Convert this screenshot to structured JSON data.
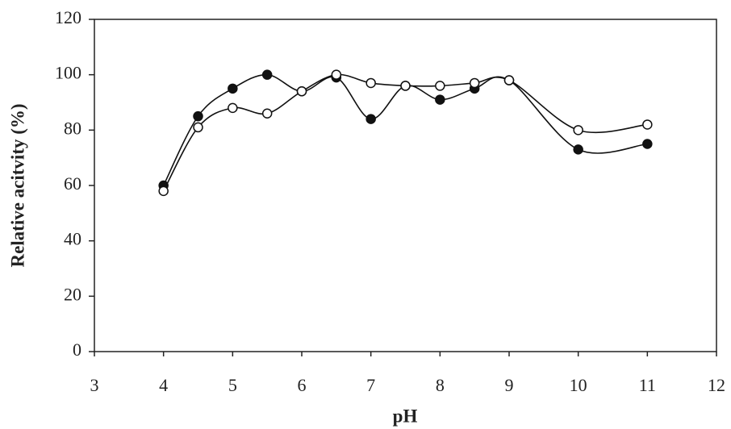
{
  "chart_data": {
    "type": "line",
    "x_label": "pH",
    "y_label": "Relative acitvity (%)",
    "x": [
      4,
      4.5,
      5,
      5.5,
      6,
      6.5,
      7,
      7.5,
      8,
      8.5,
      9,
      10,
      11
    ],
    "series": [
      {
        "name": "filled",
        "color": "#111111",
        "marker": "filled",
        "values": [
          60,
          85,
          95,
          100,
          94,
          99,
          84,
          96,
          91,
          95,
          98,
          73,
          75
        ]
      },
      {
        "name": "open",
        "color": "#111111",
        "marker": "open",
        "values": [
          58,
          81,
          88,
          86,
          94,
          100,
          97,
          96,
          96,
          97,
          98,
          80,
          82
        ]
      }
    ],
    "xlim": [
      3,
      12
    ],
    "xticks": [
      3,
      4,
      5,
      6,
      7,
      8,
      9,
      10,
      11,
      12
    ],
    "ylim": [
      0,
      120
    ],
    "yticks": [
      0,
      20,
      40,
      60,
      80,
      100,
      120
    ],
    "smooth": true,
    "legend": false
  }
}
